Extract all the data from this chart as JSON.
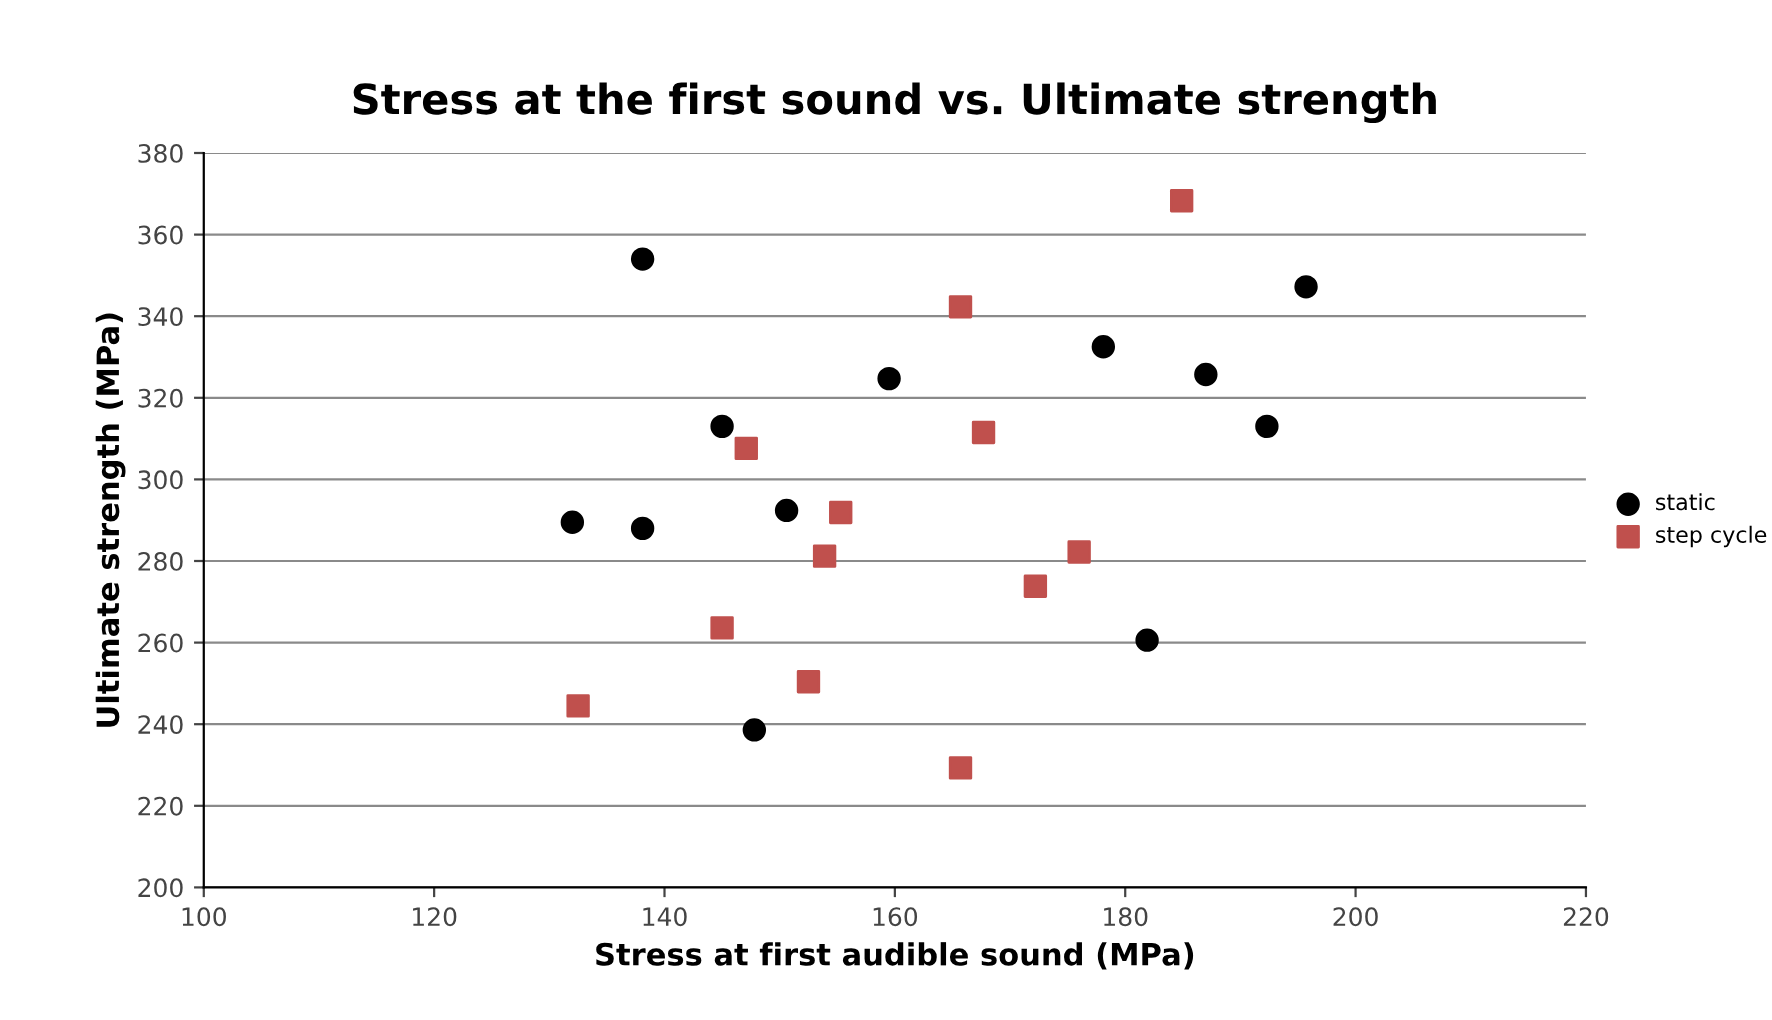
{
  "chart_data": {
    "type": "scatter",
    "title": "Stress at the first sound vs. Ultimate strength",
    "xlabel": "Stress at first audible sound (MPa)",
    "ylabel": "Ultimate strength (MPa)",
    "xlim": [
      100,
      220
    ],
    "xticks": [
      100,
      120,
      140,
      160,
      180,
      200,
      220
    ],
    "ylim": [
      200,
      380
    ],
    "yticks": [
      200,
      220,
      240,
      260,
      280,
      300,
      320,
      340,
      360,
      380
    ],
    "grid": "y",
    "legend": "right",
    "series": [
      {
        "name": "static",
        "color": "#000000",
        "marker": "circle",
        "x": [
          138.1,
          132.0,
          138.1,
          145.0,
          150.6,
          159.5,
          147.8,
          178.1,
          187.0,
          192.3,
          195.7,
          181.9
        ],
        "values": [
          354,
          289.5,
          288,
          313,
          292.4,
          324.7,
          238.6,
          332.5,
          325.7,
          313,
          347.2,
          260.6
        ]
      },
      {
        "name": "step cycle",
        "color": "#c0504d",
        "marker": "square",
        "x": [
          184.9,
          165.7,
          167.7,
          147.1,
          155.3,
          153.9,
          145.0,
          132.5,
          152.5,
          165.7,
          172.2,
          176.0
        ],
        "values": [
          368.3,
          342.3,
          311.5,
          307.6,
          291.9,
          281.2,
          263.6,
          244.5,
          250.4,
          229.3,
          273.8,
          282.2
        ]
      }
    ]
  }
}
